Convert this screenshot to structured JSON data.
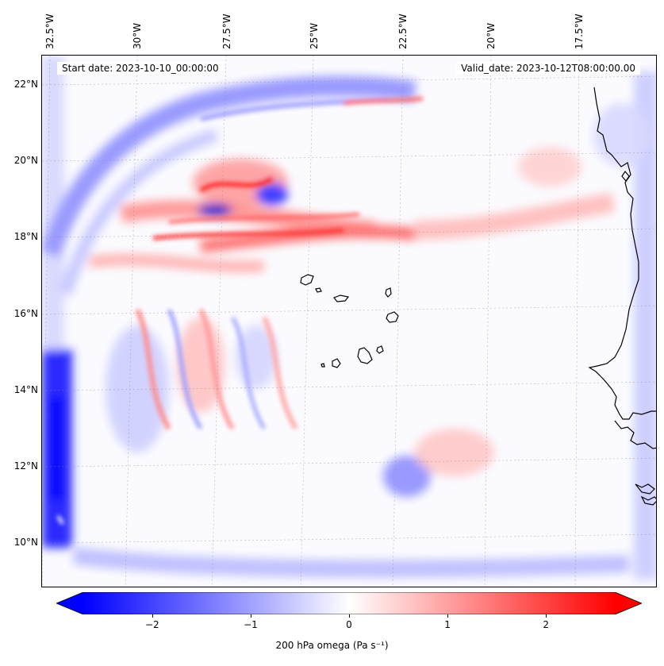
{
  "map": {
    "start_date_label": "Start date: 2023-10-10_00:00:00",
    "valid_date_label": "Valid_date: 2023-10-12T08:00:00.00",
    "longitude_labels": [
      "32.5°W",
      "30°W",
      "27.5°W",
      "25°W",
      "22.5°W",
      "20°W",
      "17.5°W"
    ],
    "latitude_labels": [
      "22°N",
      "20°N",
      "18°N",
      "16°N",
      "14°N",
      "12°N",
      "10°N"
    ],
    "variable": "200 hPa omega",
    "projection": "lambert-conformal",
    "gridlines": true,
    "coastlines": true,
    "features": [
      "Cape Verde islands",
      "West African coastline"
    ]
  },
  "colorbar": {
    "label": "200 hPa omega (Pa s⁻¹)",
    "tick_labels": [
      "−2",
      "−1",
      "0",
      "1",
      "2"
    ],
    "range": [
      -2.7,
      2.7
    ],
    "colormap": "bwr",
    "extend": "both",
    "colors": {
      "min": "#0000ff",
      "mid": "#ffffff",
      "max": "#ff0000"
    }
  }
}
